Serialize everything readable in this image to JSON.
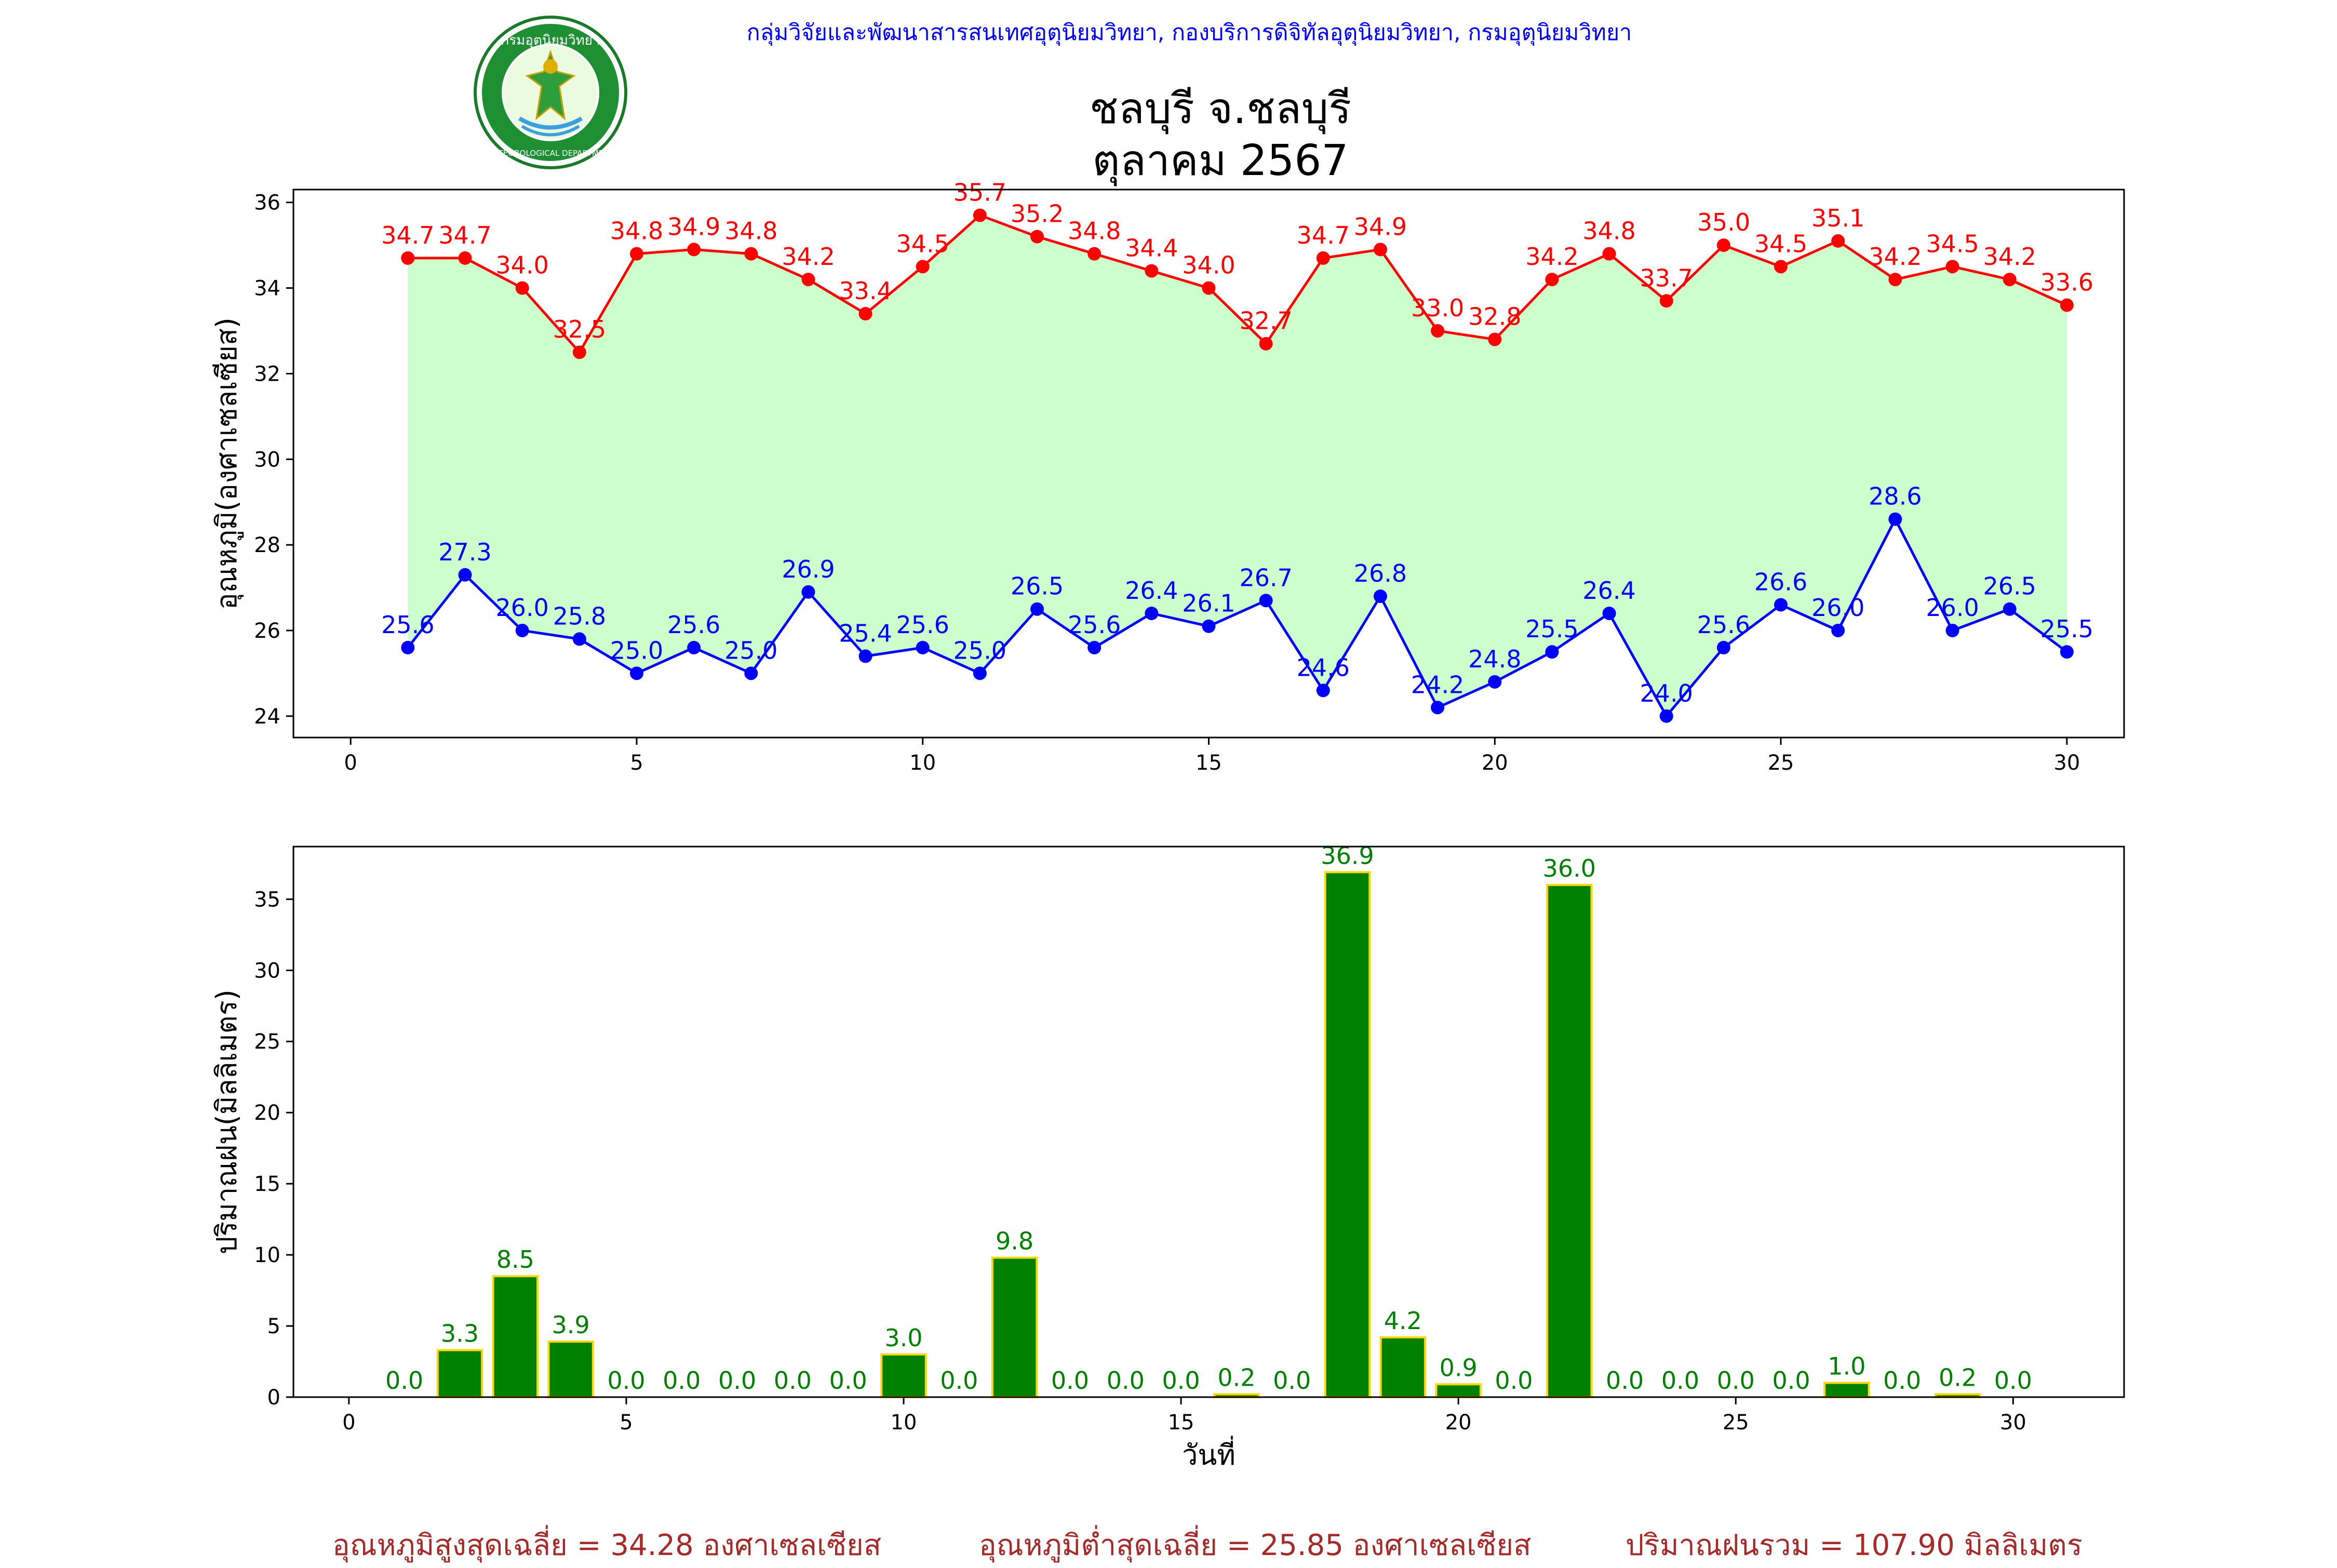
{
  "header": {
    "credit": "กลุ่มวิจัยและพัฒนาสารสนเทศอุตุนิยมวิทยา, กองบริการดิจิทัลอุตุนิยมวิทยา, กรมอุตุนิยมวิทยา",
    "logo_text_top": "กรมอุตุนิยมวิทยา",
    "logo_text_bottom": "METEOROLOGICAL DEPARTMENT",
    "title_line1": "ชลบุรี จ.ชลบุรี",
    "title_line2": "ตุลาคม 2567"
  },
  "colors": {
    "tmax": "#ff0000",
    "tmin": "#0000ff",
    "fill": "#ccffcc",
    "rain_bar": "#008000",
    "rain_edge": "#ffd700",
    "rain_label": "#008000",
    "footer": "#a52a2a",
    "credit": "#0000ff"
  },
  "chart_data": [
    {
      "type": "line",
      "ylabel": "อุณหภูมิ(องศาเซลเซียส)",
      "xlabel": "",
      "xlim": [
        -1,
        31
      ],
      "ylim": [
        23.5,
        36.3
      ],
      "xticks": [
        0,
        5,
        10,
        15,
        20,
        25,
        30
      ],
      "yticks": [
        24,
        26,
        28,
        30,
        32,
        34,
        36
      ],
      "fill_between": true,
      "x": [
        1,
        2,
        3,
        4,
        5,
        6,
        7,
        8,
        9,
        10,
        11,
        12,
        13,
        14,
        15,
        16,
        17,
        18,
        19,
        20,
        21,
        22,
        23,
        24,
        25,
        26,
        27,
        28,
        29,
        30
      ],
      "series": [
        {
          "values": [
            34.7,
            34.7,
            34.0,
            32.5,
            34.8,
            34.9,
            34.8,
            34.2,
            33.4,
            34.5,
            35.7,
            35.2,
            34.8,
            34.4,
            34.0,
            32.7,
            34.7,
            34.9,
            33.0,
            32.8,
            34.2,
            34.8,
            33.7,
            35.0,
            34.5,
            35.1,
            34.2,
            34.5,
            34.2,
            33.6
          ]
        },
        {
          "values": [
            25.6,
            27.3,
            26.0,
            25.8,
            25.0,
            25.6,
            25.0,
            26.9,
            25.4,
            25.6,
            25.0,
            26.5,
            25.6,
            26.4,
            26.1,
            26.7,
            24.6,
            26.8,
            24.2,
            24.8,
            25.5,
            26.4,
            24.0,
            25.6,
            26.6,
            26.0,
            28.6,
            26.0,
            26.5,
            25.5
          ]
        }
      ]
    },
    {
      "type": "bar",
      "ylabel": "ปริมาณฝน(มิลลิเมตร)",
      "xlabel": "วันที่",
      "xlim": [
        -1,
        32
      ],
      "ylim": [
        0,
        38.7
      ],
      "xticks": [
        0,
        5,
        10,
        15,
        20,
        25,
        30
      ],
      "yticks": [
        0,
        5,
        10,
        15,
        20,
        25,
        30,
        35
      ],
      "x": [
        1,
        2,
        3,
        4,
        5,
        6,
        7,
        8,
        9,
        10,
        11,
        12,
        13,
        14,
        15,
        16,
        17,
        18,
        19,
        20,
        21,
        22,
        23,
        24,
        25,
        26,
        27,
        28,
        29,
        30
      ],
      "values": [
        0.0,
        3.3,
        8.5,
        3.9,
        0.0,
        0.0,
        0.0,
        0.0,
        0.0,
        3.0,
        0.0,
        9.8,
        0.0,
        0.0,
        0.0,
        0.2,
        0.0,
        36.9,
        4.2,
        0.9,
        0.0,
        36.0,
        0.0,
        0.0,
        0.0,
        0.0,
        1.0,
        0.0,
        0.2,
        0.0
      ]
    }
  ],
  "footer": {
    "tmax_avg": "อุณหภูมิสูงสุดเฉลี่ย = 34.28 องศาเซลเซียส",
    "tmin_avg": "อุณหภูมิต่ำสุดเฉลี่ย = 25.85 องศาเซลเซียส",
    "rain_total": "ปริมาณฝนรวม = 107.90 มิลลิเมตร"
  }
}
